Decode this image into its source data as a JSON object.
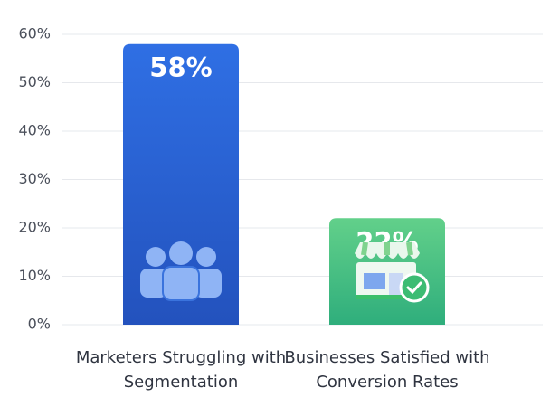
{
  "chart_data": {
    "type": "bar",
    "categories": [
      "Marketers Struggling with Segmentation",
      "Businesses Satisfied with Conversion Rates"
    ],
    "values": [
      58,
      22
    ],
    "value_labels": [
      "58%",
      "22%"
    ],
    "colors": [
      "#2d64d8",
      "#4cc283"
    ],
    "ylim": [
      0,
      60
    ],
    "yticks": [
      {
        "value": 0,
        "label": "0%"
      },
      {
        "value": 10,
        "label": "10%"
      },
      {
        "value": 20,
        "label": "20%"
      },
      {
        "value": 30,
        "label": "30%"
      },
      {
        "value": 40,
        "label": "40%"
      },
      {
        "value": 50,
        "label": "50%"
      },
      {
        "value": 60,
        "label": "60%"
      }
    ],
    "grid": true
  }
}
